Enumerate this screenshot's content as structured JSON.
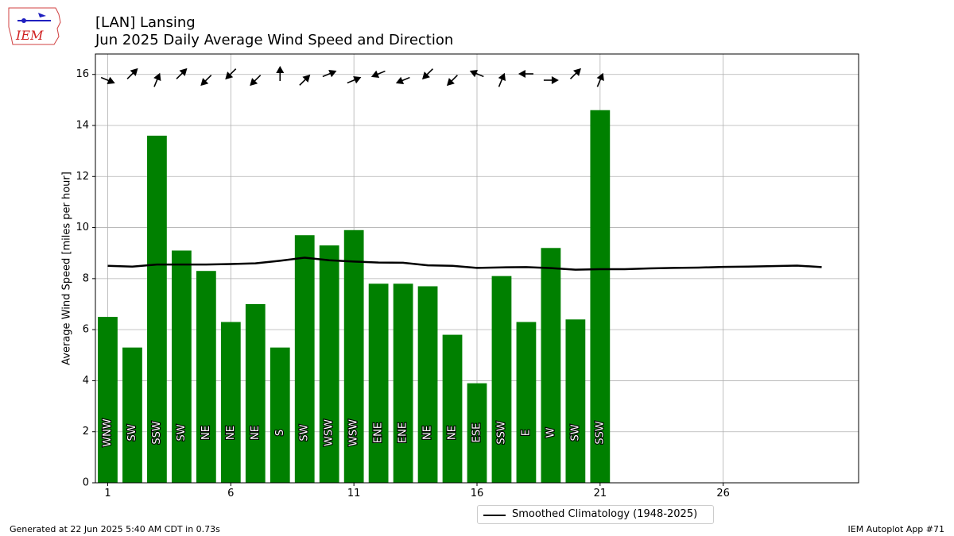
{
  "header": {
    "title_line1": "[LAN] Lansing",
    "title_line2": "Jun 2025 Daily Average Wind Speed and Direction",
    "logo_text": "IEM"
  },
  "footer": {
    "generated": "Generated at 22 Jun 2025 5:40 AM CDT in 0.73s",
    "app": "IEM Autoplot App #71"
  },
  "legend": {
    "climatology_label": "Smoothed Climatology (1948-2025)"
  },
  "colors": {
    "bar": "#008000",
    "line": "#000000",
    "grid": "#b0b0b0"
  },
  "chart_data": {
    "type": "bar",
    "ylabel": "Average Wind Speed [miles per hour]",
    "xlabel": "",
    "ylim": [
      0,
      16.8
    ],
    "xlim": [
      0.5,
      31.5
    ],
    "grid": true,
    "legend_position": "bottom-center",
    "xticks": [
      1,
      6,
      11,
      16,
      21,
      26
    ],
    "yticks": [
      0,
      2,
      4,
      6,
      8,
      10,
      12,
      14,
      16
    ],
    "days": [
      1,
      2,
      3,
      4,
      5,
      6,
      7,
      8,
      9,
      10,
      11,
      12,
      13,
      14,
      15,
      16,
      17,
      18,
      19,
      20,
      21
    ],
    "values": [
      6.5,
      5.3,
      13.6,
      9.1,
      8.3,
      6.3,
      7.0,
      5.3,
      9.7,
      9.3,
      9.9,
      7.8,
      7.8,
      7.7,
      5.8,
      3.9,
      8.1,
      6.3,
      9.2,
      6.4,
      14.6
    ],
    "directions": [
      "WNW",
      "SW",
      "SSW",
      "SW",
      "NE",
      "NE",
      "NE",
      "S",
      "SW",
      "WSW",
      "WSW",
      "ENE",
      "ENE",
      "NE",
      "NE",
      "ESE",
      "SSW",
      "E",
      "W",
      "SW",
      "SSW"
    ],
    "climatology": {
      "name": "Smoothed Climatology (1948-2025)",
      "x": [
        1,
        2,
        3,
        4,
        5,
        6,
        7,
        8,
        9,
        10,
        11,
        12,
        13,
        14,
        15,
        16,
        17,
        18,
        19,
        20,
        21,
        22,
        23,
        24,
        25,
        26,
        27,
        28,
        29,
        30
      ],
      "y": [
        8.5,
        8.47,
        8.55,
        8.55,
        8.55,
        8.57,
        8.6,
        8.7,
        8.82,
        8.72,
        8.67,
        8.63,
        8.62,
        8.52,
        8.5,
        8.42,
        8.44,
        8.45,
        8.41,
        8.35,
        8.37,
        8.37,
        8.4,
        8.42,
        8.43,
        8.46,
        8.47,
        8.49,
        8.51,
        8.45
      ]
    }
  }
}
